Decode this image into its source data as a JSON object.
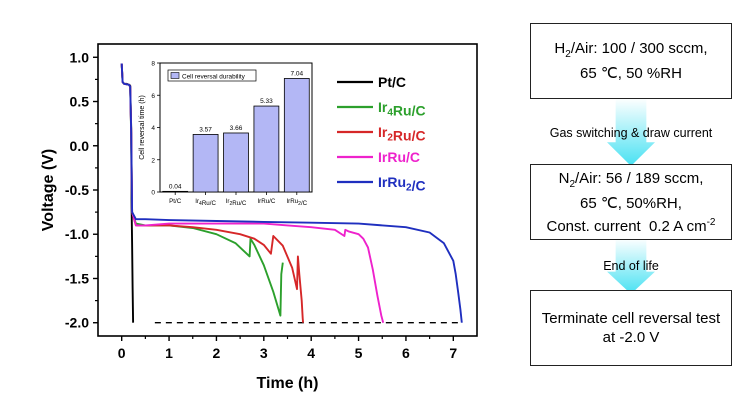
{
  "chart_data": [
    {
      "type": "line",
      "xlabel": "Time (h)",
      "ylabel": "Voltage (V)",
      "xlim": [
        -0.5,
        7.5
      ],
      "ylim": [
        -2.15,
        1.15
      ],
      "xticks": [
        "0",
        "1",
        "2",
        "3",
        "4",
        "5",
        "6",
        "7"
      ],
      "yticks": [
        "1.0",
        "0.5",
        "0.0",
        "-0.5",
        "-1.0",
        "-1.5",
        "-2.0"
      ],
      "reference_line": {
        "y": -2.0,
        "style": "dashed"
      },
      "legend_position": "right",
      "series": [
        {
          "name": "Pt/C",
          "color": "#000000",
          "x": [
            0.0,
            0.02,
            0.05,
            0.1,
            0.15,
            0.18,
            0.2,
            0.21,
            0.22,
            0.23,
            0.24
          ],
          "y": [
            0.93,
            0.72,
            0.7,
            0.7,
            0.69,
            0.68,
            0.2,
            -0.7,
            -1.1,
            -1.6,
            -2.0
          ]
        },
        {
          "name": "Ir4Ru/C",
          "color": "#2ca02c",
          "x": [
            0.0,
            0.02,
            0.05,
            0.15,
            0.18,
            0.2,
            0.22,
            0.3,
            0.5,
            1.0,
            1.5,
            2.0,
            2.4,
            2.7,
            2.72,
            2.8,
            3.0,
            3.2,
            3.35,
            3.37,
            3.4
          ],
          "y": [
            0.92,
            0.72,
            0.7,
            0.69,
            0.67,
            0.1,
            -0.75,
            -0.88,
            -0.9,
            -0.9,
            -0.93,
            -1.0,
            -1.1,
            -1.25,
            -1.05,
            -1.12,
            -1.35,
            -1.65,
            -1.92,
            -1.45,
            -1.32
          ]
        },
        {
          "name": "Ir2Ru/C",
          "color": "#d62728",
          "x": [
            0.0,
            0.02,
            0.05,
            0.15,
            0.18,
            0.2,
            0.22,
            0.3,
            0.5,
            1.0,
            1.5,
            2.0,
            2.5,
            2.8,
            3.0,
            3.15,
            3.2,
            3.4,
            3.6,
            3.7,
            3.72,
            3.75,
            3.8,
            3.82,
            3.83
          ],
          "y": [
            0.93,
            0.72,
            0.7,
            0.69,
            0.67,
            0.15,
            -0.75,
            -0.9,
            -0.9,
            -0.9,
            -0.92,
            -0.95,
            -1.0,
            -1.05,
            -1.12,
            -1.22,
            -1.02,
            -1.13,
            -1.38,
            -1.62,
            -1.25,
            -1.45,
            -1.75,
            -1.95,
            -2.0
          ]
        },
        {
          "name": "IrRu/C",
          "color": "#ee22cc",
          "x": [
            0.0,
            0.02,
            0.05,
            0.15,
            0.18,
            0.2,
            0.22,
            0.3,
            0.5,
            1.0,
            2.0,
            3.0,
            3.5,
            4.0,
            4.5,
            4.7,
            4.72,
            4.8,
            5.0,
            5.1,
            5.2,
            5.3,
            5.4,
            5.48,
            5.52
          ],
          "y": [
            0.93,
            0.72,
            0.7,
            0.69,
            0.67,
            0.15,
            -0.75,
            -0.9,
            -0.9,
            -0.88,
            -0.88,
            -0.88,
            -0.9,
            -0.92,
            -0.95,
            -1.02,
            -0.95,
            -0.97,
            -1.0,
            -1.05,
            -1.15,
            -1.4,
            -1.7,
            -1.92,
            -2.0
          ]
        },
        {
          "name": "IrRu2/C",
          "color": "#1f2fbf",
          "x": [
            0.0,
            0.02,
            0.05,
            0.15,
            0.18,
            0.2,
            0.22,
            0.3,
            0.5,
            1.0,
            2.0,
            3.0,
            4.0,
            5.0,
            6.0,
            6.5,
            6.8,
            7.0,
            7.05,
            7.1,
            7.15,
            7.18
          ],
          "y": [
            0.93,
            0.72,
            0.7,
            0.69,
            0.67,
            0.15,
            -0.75,
            -0.83,
            -0.83,
            -0.84,
            -0.85,
            -0.86,
            -0.87,
            -0.88,
            -0.92,
            -0.98,
            -1.1,
            -1.3,
            -1.45,
            -1.65,
            -1.85,
            -2.0
          ]
        }
      ]
    },
    {
      "type": "bar",
      "ylabel": "Cell reversal time (h)",
      "ylim": [
        0,
        8
      ],
      "yticks": [
        "0",
        "2",
        "4",
        "6",
        "8"
      ],
      "legend": "Cell reversal durability",
      "categories": [
        "Pt/C",
        "Ir4Ru/C",
        "Ir2Ru/C",
        "IrRu/C",
        "IrRu2/C"
      ],
      "values": [
        0.04,
        3.57,
        3.66,
        5.33,
        7.04
      ],
      "labels": [
        "0.04",
        "3.57",
        "3.66",
        "5.33",
        "7.04"
      ],
      "bar_color": "#b3b7f5"
    }
  ],
  "flow": {
    "box1_line1": "H2/Air: 100 / 300 sccm,",
    "box1_line2": "65 ℃, 50 %RH",
    "step1": "Gas switching & draw current",
    "box2_line1": "N2/Air: 56 / 189 sccm,",
    "box2_line2": "65 ℃, 50%RH,",
    "box2_line3": "Const. current  0.2 A cm-2",
    "step2": "End of life",
    "box3_line1": "Terminate cell reversal test",
    "box3_line2": "at -2.0 V"
  }
}
